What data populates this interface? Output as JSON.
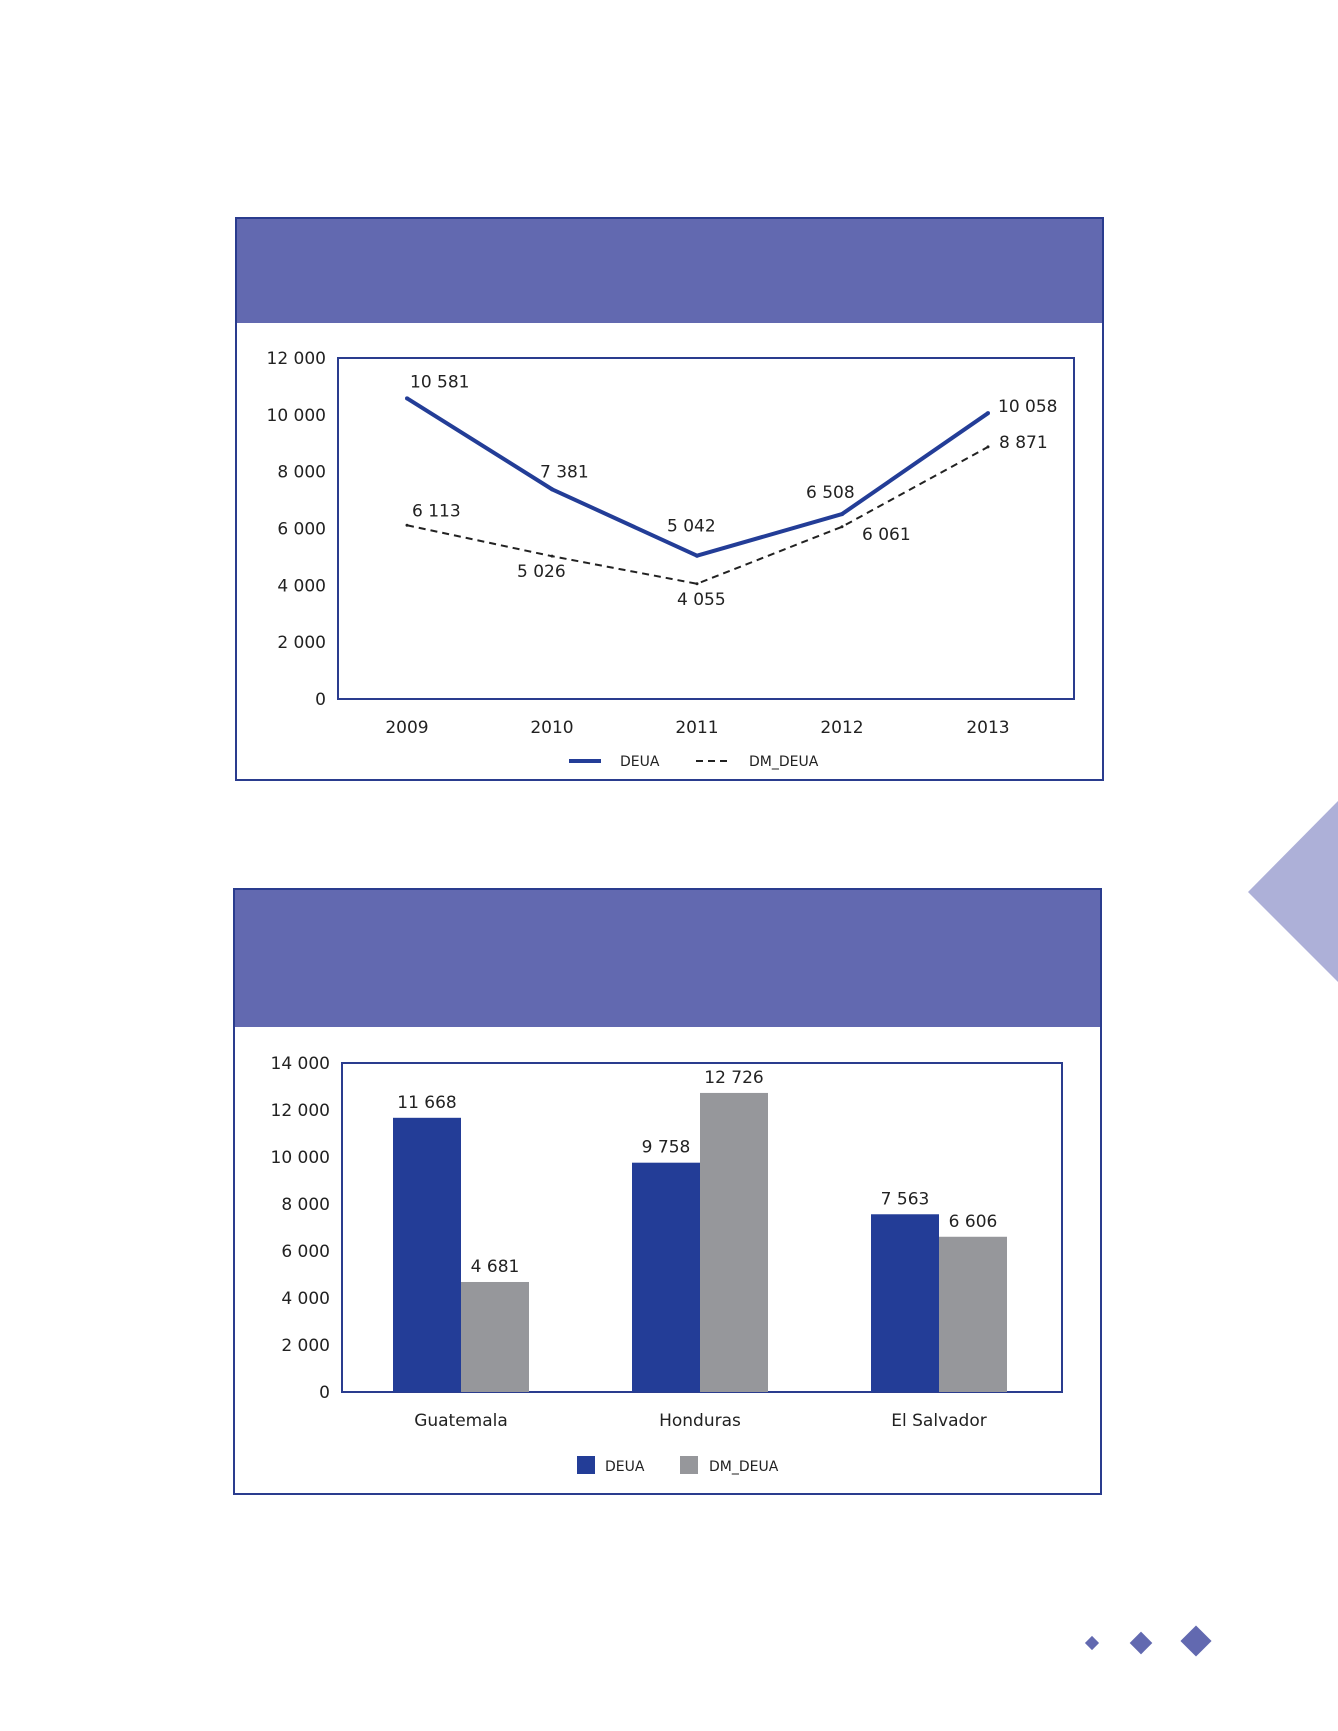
{
  "colors": {
    "header": "#6269b0",
    "frame": "#2a3c8e",
    "deua": "#233d97",
    "dm_deua": "#96979b",
    "dashed": "#222222",
    "decoration": "#adb0d8"
  },
  "chart_data": [
    {
      "type": "line",
      "title": "",
      "xlabel": "",
      "ylabel": "",
      "x": [
        "2009",
        "2010",
        "2011",
        "2012",
        "2013"
      ],
      "series": [
        {
          "name": "DEUA",
          "values": [
            10581,
            7381,
            5042,
            6508,
            10058
          ],
          "labels": [
            "10 581",
            "7 381",
            "5 042",
            "6 508",
            "10 058"
          ],
          "style": "solid"
        },
        {
          "name": "DM_DEUA",
          "values": [
            6113,
            5026,
            4055,
            6061,
            8871
          ],
          "labels": [
            "6 113",
            "5 026",
            "4 055",
            "6 061",
            "8 871"
          ],
          "style": "dashed"
        }
      ],
      "ylim": [
        0,
        12000
      ],
      "y_ticks": [
        0,
        2000,
        4000,
        6000,
        8000,
        10000,
        12000
      ],
      "y_tick_labels": [
        "0",
        "2 000",
        "4 000",
        "6 000",
        "8 000",
        "10 000",
        "12 000"
      ],
      "grid": false,
      "legend": "bottom-center"
    },
    {
      "type": "bar",
      "title": "",
      "xlabel": "",
      "ylabel": "",
      "categories": [
        "Guatemala",
        "Honduras",
        "El Salvador"
      ],
      "series": [
        {
          "name": "DEUA",
          "values": [
            11668,
            9758,
            7563
          ],
          "labels": [
            "11 668",
            "9 758",
            "7 563"
          ]
        },
        {
          "name": "DM_DEUA",
          "values": [
            4681,
            12726,
            6606
          ],
          "labels": [
            "4 681",
            "12 726",
            "6 606"
          ]
        }
      ],
      "ylim": [
        0,
        14000
      ],
      "y_ticks": [
        0,
        2000,
        4000,
        6000,
        8000,
        10000,
        12000,
        14000
      ],
      "y_tick_labels": [
        "0",
        "2 000",
        "4 000",
        "6 000",
        "8 000",
        "10 000",
        "12 000",
        "14 000"
      ],
      "grid": false,
      "legend": "bottom-center"
    }
  ]
}
